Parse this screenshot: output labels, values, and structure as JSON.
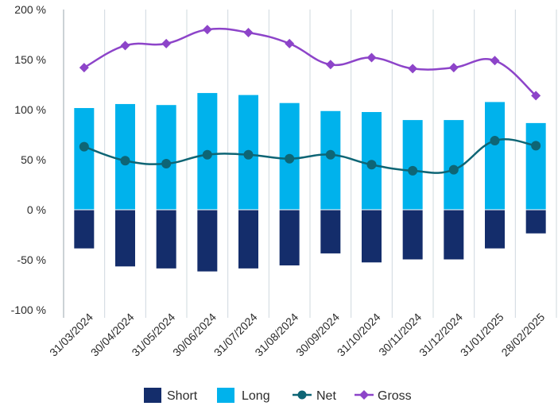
{
  "chart_data": {
    "type": "bar",
    "categories": [
      "31/03/2024",
      "30/04/2024",
      "31/05/2024",
      "30/06/2024",
      "31/07/2024",
      "31/08/2024",
      "30/09/2024",
      "31/10/2024",
      "30/11/2024",
      "31/12/2024",
      "31/01/2025",
      "28/02/2025"
    ],
    "series": [
      {
        "name": "Short",
        "type": "bar",
        "values": [
          -39,
          -57,
          -59,
          -62,
          -59,
          -56,
          -44,
          -53,
          -50,
          -50,
          -39,
          -24
        ]
      },
      {
        "name": "Long",
        "type": "bar",
        "values": [
          102,
          106,
          105,
          117,
          115,
          107,
          99,
          98,
          90,
          90,
          108,
          87
        ]
      },
      {
        "name": "Net",
        "type": "line",
        "values": [
          63,
          49,
          46,
          55,
          55,
          51,
          55,
          45,
          39,
          40,
          69,
          64
        ]
      },
      {
        "name": "Gross",
        "type": "line",
        "values": [
          142,
          164,
          166,
          180,
          177,
          166,
          145,
          152,
          141,
          142,
          149,
          114
        ]
      }
    ],
    "yticks": [
      "200 %",
      "150 %",
      "100 %",
      "50 %",
      "0 %",
      "-50 %",
      "-100 %"
    ],
    "ylim": [
      -100,
      200
    ],
    "title": "",
    "xlabel": "",
    "ylabel": "",
    "grid": "vertical",
    "legend": "bottom",
    "colors": {
      "Short": "#142d6b",
      "Long": "#00b2ec",
      "Net": "#0e6575",
      "Gross": "#8d44c9",
      "grid": "#cfd8de",
      "axis": "#9aa6ae"
    }
  }
}
